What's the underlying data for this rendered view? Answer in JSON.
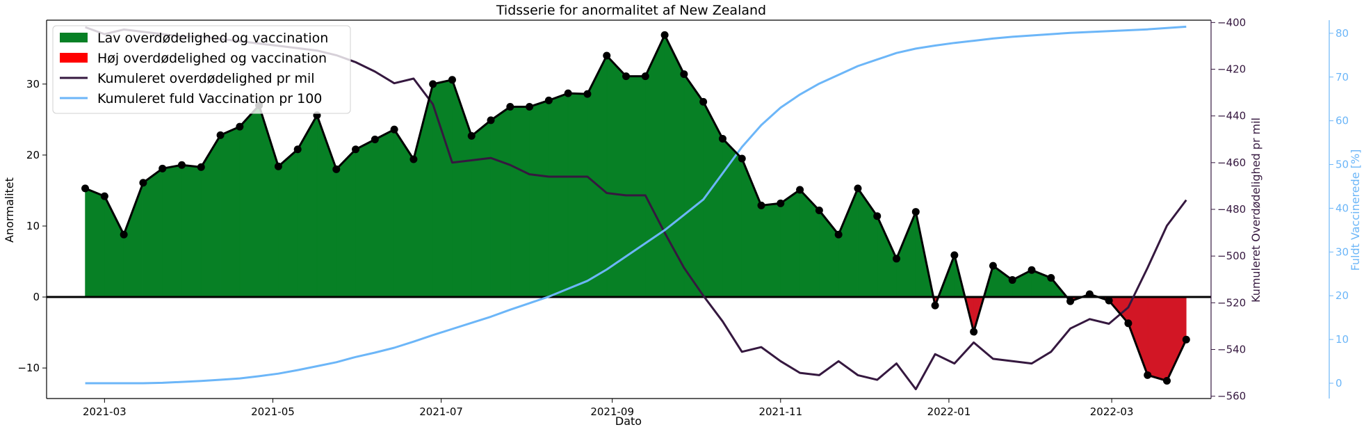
{
  "chart_data": {
    "type": "line",
    "title": "Tidsserie for anormalitet af New Zealand",
    "xlabel": "Dato",
    "ylabel": "Anormalitet",
    "ylim": [
      -14.3,
      39
    ],
    "y2label": "Kumuleret Overdødelighed pr mil",
    "y2lim": [
      -561,
      -399
    ],
    "y3label": "Fuldt Vaccinerede [%]",
    "y3lim": [
      -3.5,
      83
    ],
    "x_ticks": [
      "2021-03",
      "2021-05",
      "2021-07",
      "2021-09",
      "2021-11",
      "2022-01",
      "2022-03"
    ],
    "x_tick_values": [
      "2021-03-01",
      "2021-05-01",
      "2021-07-01",
      "2021-09-01",
      "2021-11-01",
      "2022-01-01",
      "2022-03-01"
    ],
    "xlim": [
      "2021-02-08",
      "2022-04-06"
    ],
    "y_ticks": [
      -10,
      0,
      10,
      20,
      30
    ],
    "y2_ticks": [
      -560,
      -540,
      -520,
      -500,
      -480,
      -460,
      -440,
      -420,
      -400
    ],
    "y3_ticks": [
      0,
      10,
      20,
      30,
      40,
      50,
      60,
      70,
      80
    ],
    "x": [
      "2021-02-22",
      "2021-03-01",
      "2021-03-08",
      "2021-03-15",
      "2021-03-22",
      "2021-03-29",
      "2021-04-05",
      "2021-04-12",
      "2021-04-19",
      "2021-04-26",
      "2021-05-03",
      "2021-05-10",
      "2021-05-17",
      "2021-05-24",
      "2021-05-31",
      "2021-06-07",
      "2021-06-14",
      "2021-06-21",
      "2021-06-28",
      "2021-07-05",
      "2021-07-12",
      "2021-07-19",
      "2021-07-26",
      "2021-08-02",
      "2021-08-09",
      "2021-08-16",
      "2021-08-23",
      "2021-08-30",
      "2021-09-06",
      "2021-09-13",
      "2021-09-20",
      "2021-09-27",
      "2021-10-04",
      "2021-10-11",
      "2021-10-18",
      "2021-10-25",
      "2021-11-01",
      "2021-11-08",
      "2021-11-15",
      "2021-11-22",
      "2021-11-29",
      "2021-12-06",
      "2021-12-13",
      "2021-12-20",
      "2021-12-27",
      "2022-01-03",
      "2022-01-10",
      "2022-01-17",
      "2022-01-24",
      "2022-01-31",
      "2022-02-07",
      "2022-02-14",
      "2022-02-21",
      "2022-02-28",
      "2022-03-07",
      "2022-03-14",
      "2022-03-21",
      "2022-03-28"
    ],
    "series": [
      {
        "name": "Anormalitet",
        "axis": "left",
        "values": [
          15.3,
          14.2,
          8.8,
          16.1,
          18.1,
          18.6,
          18.3,
          22.8,
          24.0,
          27.0,
          18.4,
          20.8,
          25.6,
          18.0,
          20.8,
          22.2,
          23.6,
          19.4,
          30.0,
          30.6,
          22.7,
          24.9,
          26.8,
          26.8,
          27.7,
          28.7,
          28.6,
          34.0,
          31.1,
          31.1,
          36.9,
          31.4,
          27.5,
          22.3,
          19.5,
          12.9,
          13.2,
          15.1,
          12.2,
          8.8,
          15.3,
          11.4,
          5.4,
          12.0,
          -1.2,
          5.9,
          -4.9,
          4.4,
          2.4,
          3.8,
          2.7,
          -0.6,
          0.4,
          -0.5,
          -3.7,
          -11.0,
          -11.8,
          -6.0
        ]
      },
      {
        "name": "Kumuleret overdødelighed pr mil",
        "axis": "right",
        "values": [
          -402,
          -405,
          -403,
          -404,
          -405,
          -406,
          -406,
          -407,
          -408,
          -409,
          -410,
          -411,
          -412,
          -414,
          -417,
          -421,
          -426,
          -424,
          -435,
          -460,
          -459,
          -458,
          -461,
          -465,
          -466,
          -466,
          -466,
          -473,
          -474,
          -474,
          -490,
          -505,
          -517,
          -528,
          -541,
          -539,
          -545,
          -550,
          -551,
          -545,
          -551,
          -553,
          -546,
          -557,
          -542,
          -546,
          -537,
          -544,
          -545,
          -546,
          -541,
          -531,
          -527,
          -529,
          -522,
          -505,
          -487,
          -476
        ]
      },
      {
        "name": "Kumuleret fuld Vaccination pr 100",
        "axis": "right2",
        "values": [
          0,
          0,
          0,
          0,
          0.1,
          0.3,
          0.5,
          0.8,
          1.1,
          1.6,
          2.2,
          3.0,
          3.9,
          4.8,
          6.0,
          7.0,
          8.1,
          9.5,
          11.0,
          12.4,
          13.8,
          15.2,
          16.8,
          18.3,
          19.8,
          21.6,
          23.4,
          26.0,
          29.0,
          32.0,
          35.0,
          38.5,
          42.0,
          48.0,
          54.0,
          59.0,
          63.0,
          66.0,
          68.5,
          70.5,
          72.5,
          74.0,
          75.5,
          76.5,
          77.2,
          77.8,
          78.3,
          78.8,
          79.2,
          79.5,
          79.8,
          80.1,
          80.3,
          80.5,
          80.7,
          80.9,
          81.2,
          81.5
        ]
      }
    ],
    "legend": {
      "placement": "upper-left",
      "entries": [
        {
          "label": "Lav overdødelighed og vaccination",
          "color": "#078025",
          "kind": "patch"
        },
        {
          "label": "Høj overdødelighed og vaccination",
          "color": "#ff0000",
          "kind": "patch"
        },
        {
          "label": "Kumuleret overdødelighed pr mil",
          "color": "#35183f",
          "kind": "line"
        },
        {
          "label": "Kumuleret fuld Vaccination pr 100",
          "color": "#6cb6f8",
          "kind": "line"
        }
      ]
    },
    "colors": {
      "positive_fill": "#078025",
      "negative_fill": "#d21625",
      "anomaly_line": "#000000",
      "mortality_line": "#35183f",
      "vaccination_line": "#6cb6f8",
      "right_axis": "#35183f",
      "right2_axis": "#6cb6f8"
    },
    "zero_line": true,
    "grid": false
  }
}
